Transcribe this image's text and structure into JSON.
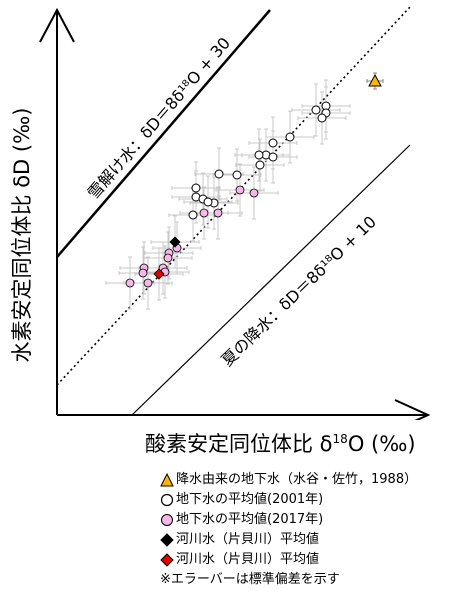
{
  "chart_data": {
    "type": "scatter",
    "xlabel": "酸素安定同位体比 δ¹⁸O (‰)",
    "ylabel": "水素安定同位体比 δD (‰)",
    "xlabel_text": "酸素安定同位体比 δ",
    "xlabel_sup": "18",
    "xlabel_tail": "O (‰)",
    "ylabel_text": "水素安定同位体比 δD (‰)",
    "line_labels": {
      "snowmelt": "雪解け水：δD＝8δ¹⁸O + 30",
      "summer": "夏の降水：δD＝8δ¹⁸O + 10"
    },
    "series": [
      {
        "name": "降水由来の地下水（水谷・佐竹，1988）",
        "marker": "triangle",
        "color": "#FFB400",
        "points": [
          [
            375,
            81
          ]
        ]
      },
      {
        "name": "地下水の平均値(2001年)",
        "marker": "circle-open",
        "color": "#FFFFFF",
        "points": [
          [
            316,
            110
          ],
          [
            326,
            106
          ],
          [
            326,
            113
          ],
          [
            322,
            118
          ],
          [
            290,
            137
          ],
          [
            273,
            143
          ],
          [
            266,
            155
          ],
          [
            273,
            157
          ],
          [
            259,
            155
          ],
          [
            260,
            165
          ],
          [
            237,
            175
          ],
          [
            219,
            174
          ],
          [
            196,
            188
          ],
          [
            196,
            197
          ],
          [
            203,
            199
          ],
          [
            214,
            203
          ],
          [
            193,
            215
          ],
          [
            208,
            202
          ]
        ]
      },
      {
        "name": "地下水の平均値(2017年)",
        "marker": "circle-filled",
        "color": "#F5B8E8",
        "points": [
          [
            254,
            193
          ],
          [
            240,
            190
          ],
          [
            204,
            213
          ],
          [
            218,
            213
          ],
          [
            177,
            248
          ],
          [
            169,
            253
          ],
          [
            168,
            258
          ],
          [
            144,
            268
          ],
          [
            143,
            273
          ],
          [
            163,
            268
          ],
          [
            165,
            272
          ],
          [
            148,
            283
          ],
          [
            130,
            283
          ]
        ]
      },
      {
        "name": "河川水（片貝川）平均値",
        "marker": "diamond",
        "color": "#000000",
        "points": [
          [
            175,
            242
          ]
        ]
      },
      {
        "name": "河川水（片貝川）平均値",
        "marker": "diamond",
        "color": "#E00000",
        "points": [
          [
            159,
            274
          ]
        ]
      }
    ],
    "note": "※エラーバーは標準偏差を示す"
  }
}
